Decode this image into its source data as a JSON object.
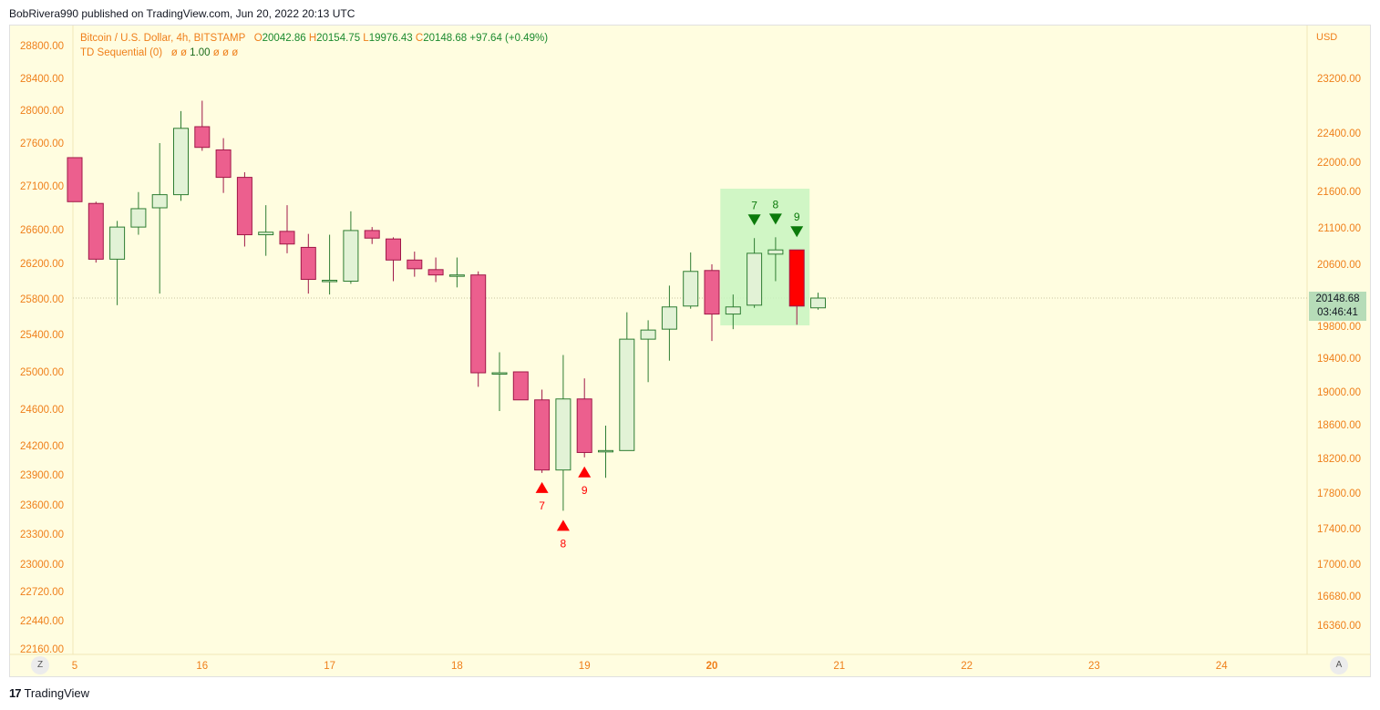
{
  "publisher_line": "BobRivera990 published on TradingView.com, Jun 20, 2022 20:13 UTC",
  "legend": {
    "symbol": "Bitcoin / U.S. Dollar, 4h, BITSTAMP",
    "open_key": "O",
    "open": "20042.86",
    "high_key": "H",
    "high": "20154.75",
    "low_key": "L",
    "low": "19976.43",
    "close_key": "C",
    "close": "20148.68",
    "change": "+97.64 (+0.49%)",
    "indicator": "TD Sequential (0)",
    "indicator_values_before": "ø ø",
    "indicator_value": "1.00",
    "indicator_values_after": "ø ø ø"
  },
  "currency": "USD",
  "price_tag": {
    "price": "20148.68",
    "countdown": "03:46:41"
  },
  "footer": {
    "brand": "TradingView",
    "mark": "17"
  },
  "axis_buttons": {
    "left": "Z",
    "right": "A"
  },
  "colors": {
    "background": "#fffde0",
    "up_fill": "#e2f2d6",
    "up_border": "#2e7d32",
    "down_fill": "#ec5f8e",
    "down_border": "#a01848",
    "last_down_fill": "#ff0000",
    "td_buy": "#ff0000",
    "td_sell": "#0b7a0b",
    "highlight": "#c8f5c0",
    "axis_text": "#ef7f1a",
    "date_text": "#ef7f1a"
  },
  "chart_data": {
    "type": "candlestick",
    "timeframe": "4h",
    "left_axis_ticks": [
      "28800.00",
      "28400.00",
      "28000.00",
      "27600.00",
      "27100.00",
      "26600.00",
      "26200.00",
      "25800.00",
      "25400.00",
      "25000.00",
      "24600.00",
      "24200.00",
      "23900.00",
      "23600.00",
      "23300.00",
      "23000.00",
      "22720.00",
      "22440.00",
      "22160.00"
    ],
    "right_axis_ticks": [
      "23200.00",
      "22400.00",
      "22000.00",
      "21600.00",
      "21100.00",
      "20600.00",
      "19800.00",
      "19400.00",
      "19000.00",
      "18600.00",
      "18200.00",
      "17800.00",
      "17400.00",
      "17000.00",
      "16680.00",
      "16360.00"
    ],
    "x_ticks": [
      "5",
      "16",
      "17",
      "18",
      "19",
      "20",
      "21",
      "22",
      "23",
      "24"
    ],
    "x_tick_index": [
      0,
      6,
      12,
      18,
      24,
      30,
      36,
      42,
      48,
      54
    ],
    "candles": [
      {
        "o": 27430,
        "h": 27430,
        "l": 26920,
        "c": 26920
      },
      {
        "o": 26900,
        "h": 26920,
        "l": 26210,
        "c": 26250
      },
      {
        "o": 26250,
        "h": 26700,
        "l": 25730,
        "c": 26630
      },
      {
        "o": 26630,
        "h": 27030,
        "l": 26540,
        "c": 26840
      },
      {
        "o": 26850,
        "h": 27600,
        "l": 25860,
        "c": 27000
      },
      {
        "o": 27000,
        "h": 27990,
        "l": 26930,
        "c": 27780
      },
      {
        "o": 27800,
        "h": 28120,
        "l": 27510,
        "c": 27550
      },
      {
        "o": 27520,
        "h": 27660,
        "l": 27020,
        "c": 27200
      },
      {
        "o": 27200,
        "h": 27260,
        "l": 26400,
        "c": 26540
      },
      {
        "o": 26540,
        "h": 26880,
        "l": 26290,
        "c": 26570
      },
      {
        "o": 26580,
        "h": 26880,
        "l": 26320,
        "c": 26430
      },
      {
        "o": 26390,
        "h": 26550,
        "l": 25860,
        "c": 26020
      },
      {
        "o": 26000,
        "h": 26540,
        "l": 25850,
        "c": 26010
      },
      {
        "o": 26000,
        "h": 26810,
        "l": 25970,
        "c": 26590
      },
      {
        "o": 26590,
        "h": 26630,
        "l": 26430,
        "c": 26500
      },
      {
        "o": 26490,
        "h": 26510,
        "l": 26000,
        "c": 26240
      },
      {
        "o": 26240,
        "h": 26340,
        "l": 26050,
        "c": 26140
      },
      {
        "o": 26130,
        "h": 26270,
        "l": 25990,
        "c": 26070
      },
      {
        "o": 26070,
        "h": 26270,
        "l": 25930,
        "c": 26070
      },
      {
        "o": 26070,
        "h": 26110,
        "l": 24840,
        "c": 24990
      },
      {
        "o": 24990,
        "h": 25210,
        "l": 24580,
        "c": 24990
      },
      {
        "o": 25000,
        "h": 25000,
        "l": 24710,
        "c": 24700
      },
      {
        "o": 24700,
        "h": 24810,
        "l": 23920,
        "c": 23950
      },
      {
        "o": 23950,
        "h": 25180,
        "l": 23540,
        "c": 24710
      },
      {
        "o": 24710,
        "h": 24930,
        "l": 24080,
        "c": 24130
      },
      {
        "o": 24140,
        "h": 24420,
        "l": 23870,
        "c": 24150
      },
      {
        "o": 24150,
        "h": 25650,
        "l": 24150,
        "c": 25350
      },
      {
        "o": 25350,
        "h": 25560,
        "l": 24890,
        "c": 25450
      },
      {
        "o": 25460,
        "h": 25950,
        "l": 25120,
        "c": 25710
      },
      {
        "o": 25720,
        "h": 26330,
        "l": 25690,
        "c": 26110
      },
      {
        "o": 26120,
        "h": 26190,
        "l": 25330,
        "c": 25630
      },
      {
        "o": 25630,
        "h": 25850,
        "l": 25460,
        "c": 25710
      },
      {
        "o": 25730,
        "h": 26500,
        "l": 25700,
        "c": 26320
      },
      {
        "o": 26310,
        "h": 26510,
        "l": 26000,
        "c": 26360
      },
      {
        "o": 26360,
        "h": 26360,
        "l": 25510,
        "c": 25720
      },
      {
        "o": 25700,
        "h": 25870,
        "l": 25680,
        "c": 25810
      }
    ],
    "td_buy_setup": [
      {
        "index": 22,
        "label": "7"
      },
      {
        "index": 23,
        "label": "8"
      },
      {
        "index": 24,
        "label": "9"
      }
    ],
    "td_sell_setup": [
      {
        "index": 32,
        "label": "7"
      },
      {
        "index": 33,
        "label": "8"
      },
      {
        "index": 34,
        "label": "9"
      }
    ],
    "td_sell_labels_override": [
      {
        "index": 32,
        "label": "7"
      },
      {
        "index": 33,
        "label": "8"
      },
      {
        "index": 34,
        "label": "9"
      }
    ],
    "highlight_candle_range": [
      31,
      34
    ],
    "last_price_line": 25810
  }
}
